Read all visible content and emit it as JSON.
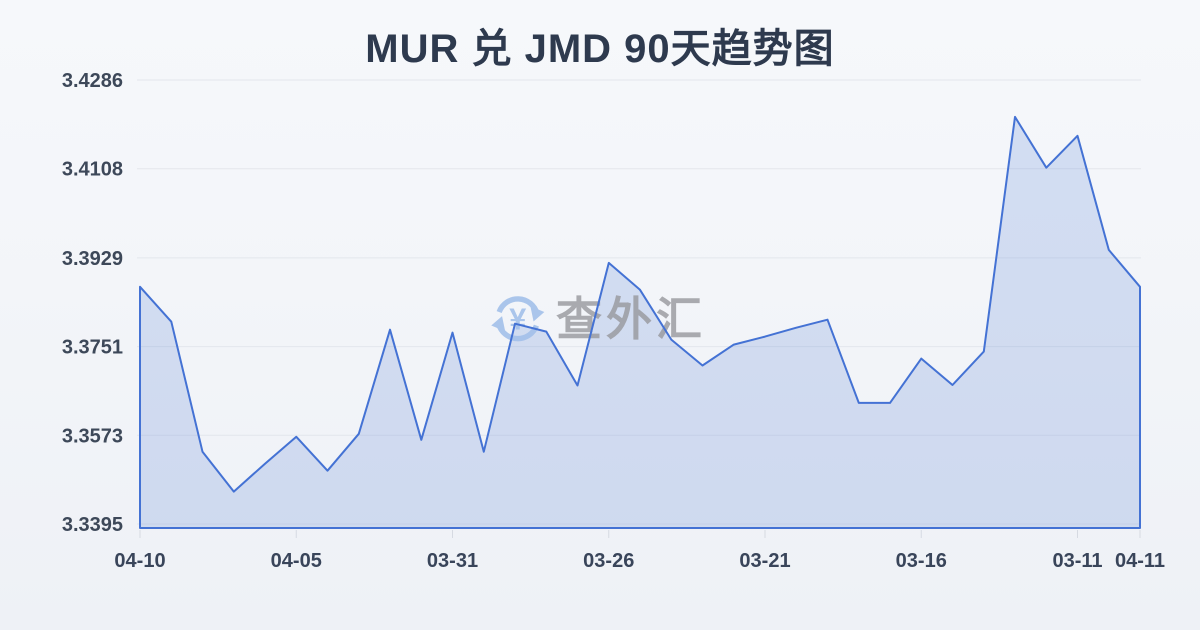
{
  "page": {
    "title": "MUR 兑 JMD 90天趋势图"
  },
  "watermark": {
    "text": "查外汇",
    "currency_symbol": "¥"
  },
  "colors": {
    "background": "#f3f5f9",
    "title_text": "#2e3a4e",
    "axis_text": "#3d4859",
    "grid_line": "#e3e6ec",
    "series_line": "#4472d4",
    "series_fill": "rgba(91,130,214,0.22)",
    "tick_mark": "#d6dae2",
    "watermark_text": "#97989d",
    "watermark_icon": "#a3c0ea"
  },
  "chart_data": {
    "type": "area",
    "title": "MUR 兑 JMD 90天趋势图",
    "xlabel": "",
    "ylabel": "",
    "grid": true,
    "legend": false,
    "ylim": [
      3.3395,
      3.4286
    ],
    "y_ticks": [
      3.4286,
      3.4108,
      3.3929,
      3.3751,
      3.3573,
      3.3395
    ],
    "x_tick_labels": [
      "04-10",
      "04-05",
      "03-31",
      "03-26",
      "03-21",
      "03-16",
      "03-11",
      "04-11"
    ],
    "x_tick_point_indices": [
      0,
      5,
      10,
      15,
      20,
      25,
      30,
      32
    ],
    "series": [
      {
        "name": "MUR/JMD",
        "x_dates": [
          "04-10",
          "04-09",
          "04-08",
          "04-07",
          "04-06",
          "04-05",
          "04-04",
          "04-03",
          "04-02",
          "04-01",
          "03-31",
          "03-30",
          "03-29",
          "03-28",
          "03-27",
          "03-26",
          "03-25",
          "03-24",
          "03-23",
          "03-22",
          "03-21",
          "03-20",
          "03-19",
          "03-18",
          "03-17",
          "03-16",
          "03-15",
          "03-14",
          "03-13",
          "03-12",
          "03-11",
          "",
          "04-11"
        ],
        "values": [
          3.3871,
          3.3801,
          3.354,
          3.346,
          3.3516,
          3.357,
          3.3502,
          3.3576,
          3.3785,
          3.3564,
          3.3779,
          3.354,
          3.3797,
          3.3781,
          3.3673,
          3.3919,
          3.3865,
          3.3765,
          3.3713,
          3.3755,
          3.3771,
          3.3789,
          3.3805,
          3.3638,
          3.3638,
          3.3727,
          3.3674,
          3.3741,
          3.4212,
          3.411,
          3.4174,
          3.3945,
          3.3871
        ]
      }
    ]
  }
}
